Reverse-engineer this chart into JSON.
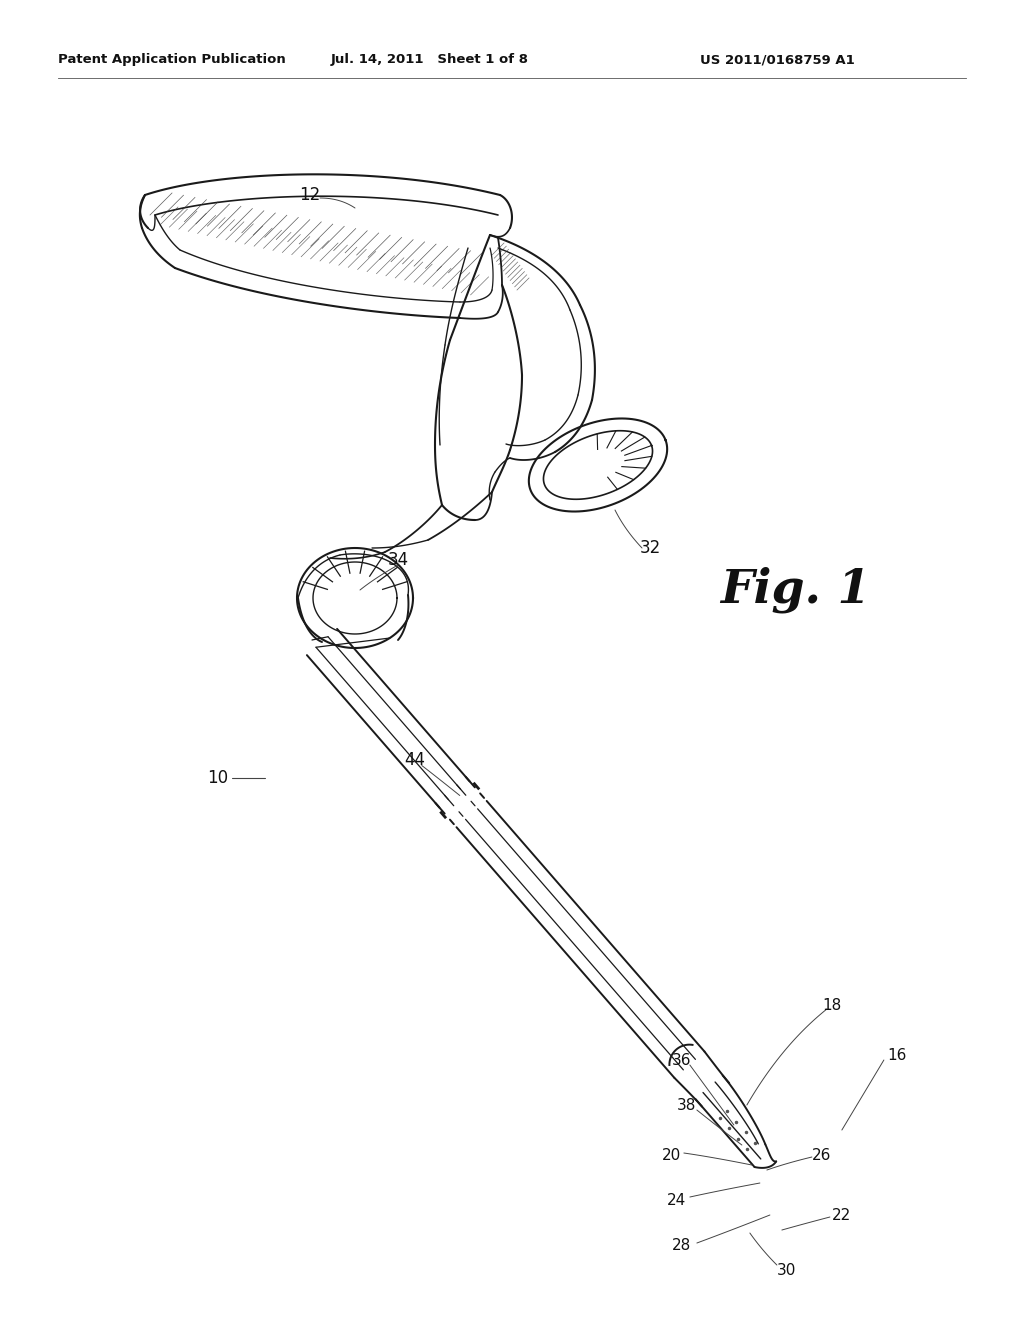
{
  "bg_color": "#ffffff",
  "header_left": "Patent Application Publication",
  "header_center": "Jul. 14, 2011   Sheet 1 of 8",
  "header_right": "US 2011/0168759 A1",
  "fig_label": "Fig. 1",
  "line_color": "#1a1a1a",
  "hatch_color": "#333333"
}
